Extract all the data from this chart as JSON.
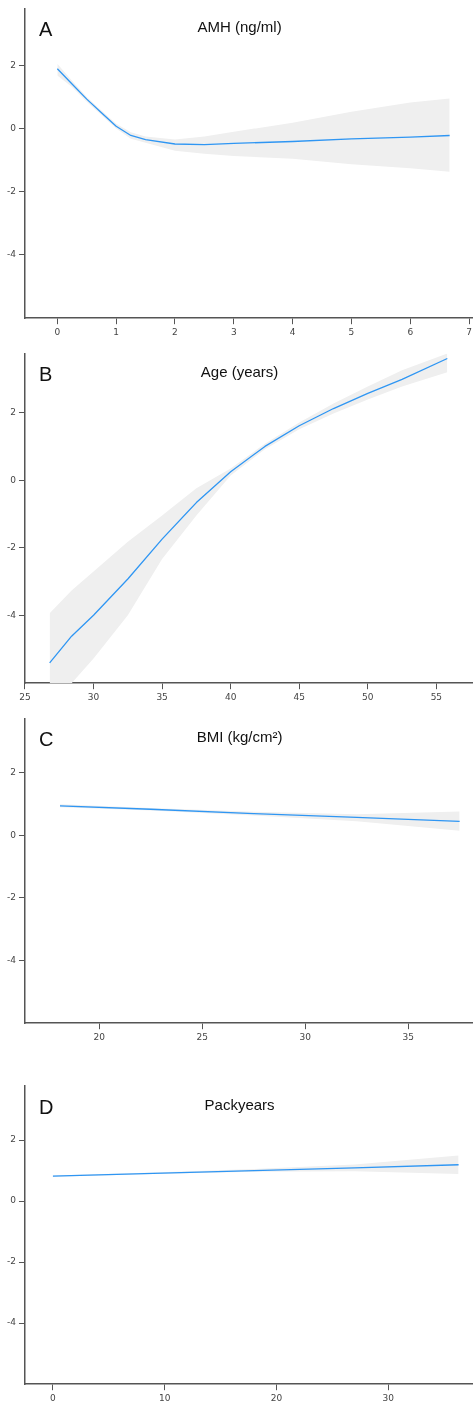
{
  "chart_data": [
    {
      "type": "line",
      "title": "AMH (ng/ml)",
      "annotations": [
        "A"
      ],
      "xlim": [
        -0.55,
        7.05
      ],
      "xticks": [
        0,
        1,
        2,
        3,
        4,
        5,
        6,
        7
      ],
      "ylim": [
        -6,
        3.8
      ],
      "yticks": [
        -4,
        -2,
        0,
        2
      ],
      "grid": false,
      "legend": false,
      "marker": "none",
      "line_style": "solid",
      "series": [
        {
          "color": "#2f96f3",
          "x": [
            0,
            0.25,
            0.5,
            0.75,
            1,
            1.25,
            1.5,
            2,
            2.5,
            3,
            4,
            5,
            6,
            6.67
          ],
          "values": [
            1.89,
            1.41,
            0.93,
            0.5,
            0.07,
            -0.22,
            -0.35,
            -0.49,
            -0.51,
            -0.47,
            -0.41,
            -0.33,
            -0.27,
            -0.22
          ],
          "lower": [
            1.68,
            1.31,
            0.85,
            0.43,
            0.0,
            -0.32,
            -0.45,
            -0.7,
            -0.8,
            -0.87,
            -0.96,
            -1.13,
            -1.26,
            -1.37
          ],
          "upper": [
            2.05,
            1.51,
            1.0,
            0.57,
            0.15,
            -0.12,
            -0.25,
            -0.35,
            -0.25,
            -0.1,
            0.18,
            0.53,
            0.82,
            0.95
          ]
        }
      ]
    },
    {
      "type": "line",
      "title": "Age (years)",
      "annotations": [
        "B"
      ],
      "xlim": [
        25,
        57.6
      ],
      "xticks": [
        25,
        30,
        35,
        40,
        45,
        50,
        55
      ],
      "ylim": [
        -6,
        3.75
      ],
      "yticks": [
        -4,
        -2,
        0,
        2
      ],
      "grid": false,
      "legend": false,
      "marker": "none",
      "line_style": "solid",
      "series": [
        {
          "color": "#2f96f3",
          "x": [
            26.8,
            28.4,
            30,
            32.5,
            35,
            37.5,
            40,
            42.5,
            45,
            47.5,
            50,
            52.5,
            55.8
          ],
          "values": [
            -5.4,
            -4.61,
            -3.99,
            -2.92,
            -1.74,
            -0.66,
            0.25,
            1.0,
            1.61,
            2.12,
            2.57,
            2.98,
            3.6
          ],
          "lower": [
            -6,
            -6,
            -5.27,
            -3.99,
            -2.33,
            -1.04,
            0.14,
            0.92,
            1.51,
            1.97,
            2.39,
            2.77,
            3.19
          ],
          "upper": [
            -3.93,
            -3.26,
            -2.7,
            -1.82,
            -1.04,
            -0.24,
            0.35,
            1.08,
            1.71,
            2.27,
            2.77,
            3.25,
            3.75
          ]
        }
      ]
    },
    {
      "type": "line",
      "title": "BMI (kg/cm²)",
      "annotations": [
        "C"
      ],
      "xlim": [
        16.4,
        38.1
      ],
      "xticks": [
        20,
        25,
        30,
        35
      ],
      "ylim": [
        -6,
        3.73
      ],
      "yticks": [
        -4,
        -2,
        0,
        2
      ],
      "grid": false,
      "legend": false,
      "marker": "none",
      "line_style": "solid",
      "series": [
        {
          "color": "#2f96f3",
          "x": [
            18.1,
            22.5,
            27.5,
            32.5,
            37.5
          ],
          "values": [
            0.94,
            0.83,
            0.69,
            0.57,
            0.44
          ],
          "lower": [
            0.89,
            0.79,
            0.63,
            0.45,
            0.14
          ],
          "upper": [
            0.99,
            0.87,
            0.75,
            0.67,
            0.76
          ]
        }
      ]
    },
    {
      "type": "line",
      "title": "Packyears",
      "annotations": [
        "D"
      ],
      "xlim": [
        -2.5,
        37.5
      ],
      "xticks": [
        0,
        10,
        20,
        30
      ],
      "ylim": [
        -6,
        3.77
      ],
      "yticks": [
        -4,
        -2,
        0,
        2
      ],
      "grid": false,
      "legend": false,
      "marker": "none",
      "line_style": "solid",
      "series": [
        {
          "color": "#2f96f3",
          "x": [
            0,
            9,
            18,
            27,
            36.3
          ],
          "values": [
            0.82,
            0.91,
            1.0,
            1.09,
            1.19
          ],
          "lower": [
            0.8,
            0.89,
            0.96,
            0.98,
            0.89
          ],
          "upper": [
            0.84,
            0.94,
            1.05,
            1.2,
            1.49
          ]
        }
      ]
    }
  ]
}
